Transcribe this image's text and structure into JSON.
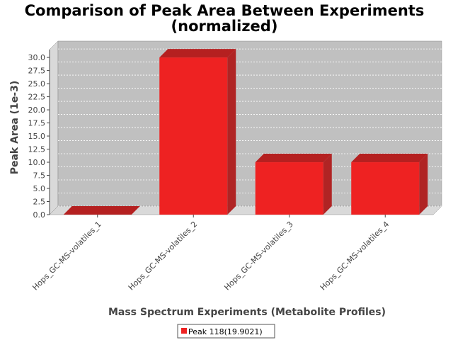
{
  "chart_data": {
    "type": "bar",
    "title": [
      "Comparison of Peak Area Between Experiments",
      "(normalized)"
    ],
    "xlabel": "Mass Spectrum Experiments (Metabolite Profiles)",
    "ylabel": "Peak Area (1e-3)",
    "categories": [
      "Hops_GC-MS-volatiles_1",
      "Hops_GC-MS-volatiles_2",
      "Hops_GC-MS-volatiles_3",
      "Hops_GC-MS-volatiles_4"
    ],
    "series": [
      {
        "name": "Peak 118(19.9021)",
        "values": [
          0.0,
          30.0,
          10.0,
          10.0
        ]
      }
    ],
    "ylim": [
      0,
      31.5
    ],
    "yticks": [
      "0.0",
      "2.5",
      "5.0",
      "7.5",
      "10.0",
      "12.5",
      "15.0",
      "17.5",
      "20.0",
      "22.5",
      "25.0",
      "27.5",
      "30.0"
    ],
    "grid": true,
    "legend_position": "bottom-center",
    "colors": {
      "bar": "#ee2222",
      "bar_top": "#b52020",
      "bar_side": "#b02424",
      "plot_bg": "#c0c0c0",
      "wall": "#d9d9d9"
    }
  }
}
